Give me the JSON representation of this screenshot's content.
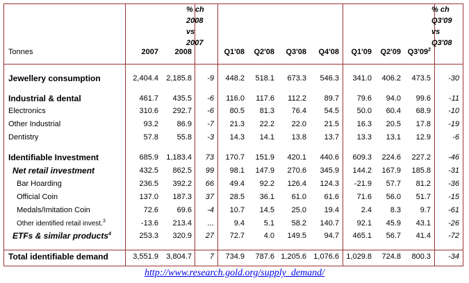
{
  "table": {
    "header": [
      "Tonnes",
      "2007",
      "2008",
      [
        "% ch",
        "2008",
        "vs",
        "2007"
      ],
      "Q1'08",
      "Q2'08",
      "Q3'08",
      "Q4'08",
      "Q1'09",
      "Q2'09",
      {
        "text": "Q3'09",
        "note": "2"
      },
      [
        "% ch",
        "Q3'09",
        "vs",
        "Q3'08"
      ]
    ],
    "rows": [
      {
        "label": "Jewellery consumption",
        "cells": [
          "2,404.4",
          "2,185.8",
          "-9",
          "448.2",
          "518.1",
          "673.3",
          "546.3",
          "341.0",
          "406.2",
          "473.5",
          "-30"
        ]
      },
      {
        "label": "Industrial & dental",
        "cells": [
          "461.7",
          "435.5",
          "-6",
          "116.0",
          "117.6",
          "112.2",
          "89.7",
          "79.6",
          "94.0",
          "99.6",
          "-11"
        ]
      },
      {
        "label": "Electronics",
        "cells": [
          "310.6",
          "292.7",
          "-6",
          "80.5",
          "81.3",
          "76.4",
          "54.5",
          "50.0",
          "60.4",
          "68.9",
          "-10"
        ]
      },
      {
        "label": "Other Industrial",
        "cells": [
          "93.2",
          "86.9",
          "-7",
          "21.3",
          "22.2",
          "22.0",
          "21.5",
          "16.3",
          "20.5",
          "17.8",
          "-19"
        ]
      },
      {
        "label": "Dentistry",
        "cells": [
          "57.8",
          "55.8",
          "-3",
          "14.3",
          "14.1",
          "13.8",
          "13.7",
          "13.3",
          "13.1",
          "12.9",
          "-6"
        ]
      },
      {
        "label": "Identifiable Investment",
        "cells": [
          "685.9",
          "1,183.4",
          "73",
          "170.7",
          "151.9",
          "420.1",
          "440.6",
          "609.3",
          "224.6",
          "227.2",
          "-46"
        ]
      },
      {
        "label": "Net retail investment",
        "cells": [
          "432.5",
          "862.5",
          "99",
          "98.1",
          "147.9",
          "270.6",
          "345.9",
          "144.2",
          "167.9",
          "185.8",
          "-31"
        ]
      },
      {
        "label": "Bar Hoarding",
        "cells": [
          "236.5",
          "392.2",
          "66",
          "49.4",
          "92.2",
          "126.4",
          "124.3",
          "-21.9",
          "57.7",
          "81.2",
          "-36"
        ]
      },
      {
        "label": "Official Coin",
        "cells": [
          "137.0",
          "187.3",
          "37",
          "28.5",
          "36.1",
          "61.0",
          "61.6",
          "71.6",
          "56.0",
          "51.7",
          "-15"
        ]
      },
      {
        "label": "Medals/Imitation Coin",
        "cells": [
          "72.6",
          "69.6",
          "-4",
          "10.7",
          "14.5",
          "25.0",
          "19.4",
          "2.4",
          "8.3",
          "9.7",
          "-61"
        ]
      },
      {
        "label": "Other identified retail invest.",
        "note": "3",
        "cells": [
          "-13.6",
          "213.4",
          "...",
          "9.4",
          "5.1",
          "58.2",
          "140.7",
          "92.1",
          "45.9",
          "43.1",
          "-26"
        ]
      },
      {
        "label": "ETFs & similar products",
        "note": "4",
        "cells": [
          "253.3",
          "320.9",
          "27",
          "72.7",
          "4.0",
          "149.5",
          "94.7",
          "465.1",
          "56.7",
          "41.4",
          "-72"
        ]
      },
      {
        "label": "Total identifiable demand",
        "cells": [
          "3,551.9",
          "3,804.7",
          "7",
          "734.9",
          "787.6",
          "1,205.6",
          "1,076.6",
          "1,029.8",
          "724.8",
          "800.3",
          "-34"
        ]
      }
    ],
    "footer_link": "http://www.research.gold.org/supply_demand/"
  }
}
